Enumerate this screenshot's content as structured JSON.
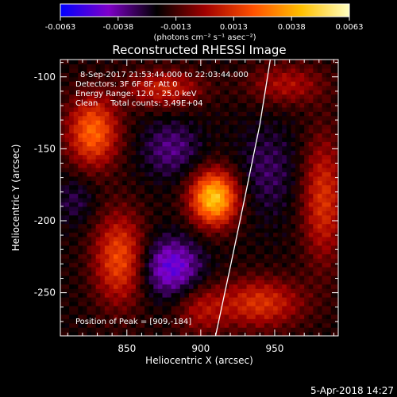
{
  "chart_data": {
    "type": "heatmap",
    "title": "Reconstructed RHESSI Image",
    "xlabel": "Heliocentric X (arcsec)",
    "ylabel": "Heliocentric Y (arcsec)",
    "xlim": [
      805,
      993
    ],
    "ylim": [
      -280,
      -88
    ],
    "x_ticks": [
      850,
      900,
      950
    ],
    "y_ticks": [
      -100,
      -150,
      -200,
      -250
    ],
    "colorbar": {
      "min": -0.0063,
      "max": 0.0063,
      "ticks": [
        "-0.0063",
        "-0.0038",
        "-0.0013",
        "0.0013",
        "0.0038",
        "0.0063"
      ],
      "unit_label": "(photons cm⁻² s⁻¹ asec⁻²)",
      "colors": [
        "#0000ff",
        "#7f00c8",
        "#000000",
        "#a00000",
        "#ff5000",
        "#ffc000",
        "#ffffc0"
      ]
    },
    "grid": false,
    "annotations": {
      "time_range": "8-Sep-2017 21:53:44.000 to 22:03:44.000",
      "detectors": "Detectors: 3F 6F 8F, Att 0",
      "energy": "Energy Range: 12.0 - 25.0 keV",
      "clean": "Clean     Total counts: 3.49E+04",
      "peak": "Position of Peak = [909,-184]"
    },
    "peak": {
      "x": 909,
      "y": -184
    },
    "sources": [
      {
        "x": 909,
        "y": -184,
        "amp": 0.0063,
        "sx": 11,
        "sy": 13
      },
      {
        "x": 827,
        "y": -138,
        "amp": 0.0042,
        "sx": 12,
        "sy": 17
      },
      {
        "x": 845,
        "y": -226,
        "amp": 0.0036,
        "sx": 12,
        "sy": 22
      },
      {
        "x": 875,
        "y": -108,
        "amp": 0.0026,
        "sx": 18,
        "sy": 9
      },
      {
        "x": 940,
        "y": -257,
        "amp": 0.003,
        "sx": 20,
        "sy": 12
      },
      {
        "x": 983,
        "y": -185,
        "amp": 0.003,
        "sx": 10,
        "sy": 30
      },
      {
        "x": 958,
        "y": -105,
        "amp": 0.002,
        "sx": 18,
        "sy": 10
      },
      {
        "x": 900,
        "y": -262,
        "amp": 0.0018,
        "sx": 12,
        "sy": 12
      },
      {
        "x": 880,
        "y": -150,
        "amp": -0.0016,
        "sx": 14,
        "sy": 14
      },
      {
        "x": 880,
        "y": -232,
        "amp": -0.003,
        "sx": 14,
        "sy": 14
      },
      {
        "x": 945,
        "y": -165,
        "amp": -0.0012,
        "sx": 14,
        "sy": 22
      },
      {
        "x": 815,
        "y": -185,
        "amp": -0.001,
        "sx": 10,
        "sy": 12
      }
    ],
    "limb_curve": {
      "x": [
        910,
        920,
        930,
        940,
        947
      ],
      "y": [
        -280,
        -232,
        -183,
        -133,
        -88
      ]
    }
  },
  "footer": {
    "date": "5-Apr-2018 14:27"
  }
}
